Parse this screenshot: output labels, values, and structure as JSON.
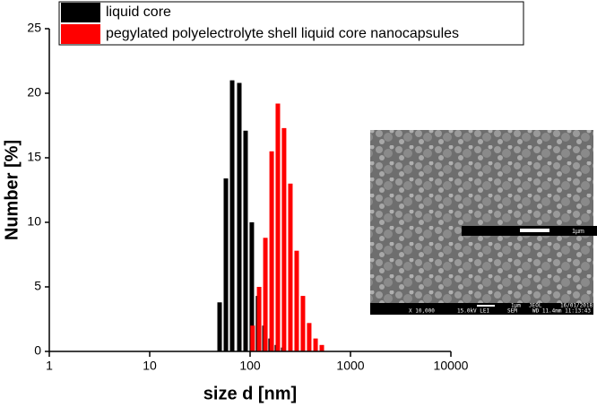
{
  "chart_data": {
    "type": "bar",
    "x_label": "size d [nm]",
    "y_label": "Number [%]",
    "xlim": [
      1,
      10000
    ],
    "xticks": [
      1,
      10,
      100,
      1000,
      10000
    ],
    "xscale": "log",
    "ylim": [
      0,
      25
    ],
    "yticks": [
      0,
      5,
      10,
      15,
      20,
      25
    ],
    "legend_position": "upper left",
    "series": [
      {
        "name": "liquid core",
        "color": "#000000",
        "x": [
          49.7,
          57.4,
          66.3,
          78.1,
          90.2,
          104,
          120,
          139,
          160,
          185,
          214
        ],
        "values": [
          3.8,
          13.4,
          21.0,
          20.8,
          17.1,
          10.0,
          4.3,
          2.0,
          1.0,
          0.5,
          0.3
        ]
      },
      {
        "name": "pegylated polyelectrolyte shell liquid core nanocapsules",
        "color": "#ff0000",
        "x": [
          106,
          123,
          142,
          164,
          189,
          218,
          252,
          291,
          336,
          388,
          449,
          518
        ],
        "values": [
          2.0,
          5.0,
          8.8,
          15.5,
          19.2,
          17.3,
          13.0,
          7.8,
          4.3,
          2.2,
          1.0,
          0.5
        ]
      }
    ],
    "inset": {
      "scale_bar_label": "1µm",
      "footer_top": [
        "1µm",
        "JEOL",
        "16/01/2018"
      ],
      "footer_bottom": [
        "X 10,000",
        "15.0kV LEI",
        "SEM",
        "WD 11.4mm 11:13:43"
      ]
    }
  }
}
